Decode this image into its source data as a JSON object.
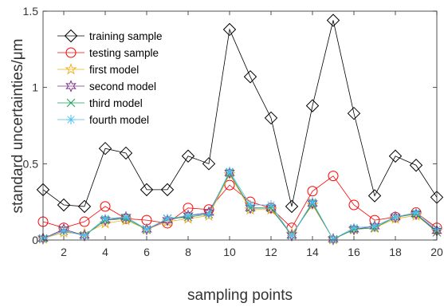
{
  "chart_data": {
    "type": "line",
    "title": "",
    "xlabel": "sampling points",
    "ylabel": "standard uncertainties/μm",
    "xlim": [
      1,
      20
    ],
    "ylim": [
      0,
      1.5
    ],
    "x": [
      1,
      2,
      3,
      4,
      5,
      6,
      7,
      8,
      9,
      10,
      11,
      12,
      13,
      14,
      15,
      16,
      17,
      18,
      19,
      20
    ],
    "xticks": [
      2,
      4,
      6,
      8,
      10,
      12,
      14,
      16,
      18,
      20
    ],
    "yticks": [
      0,
      0.5,
      1,
      1.5
    ],
    "xtick_labels": [
      "2",
      "4",
      "6",
      "8",
      "10",
      "12",
      "14",
      "16",
      "18",
      "20"
    ],
    "ytick_labels": [
      "0",
      "0.5",
      "1",
      "1.5"
    ],
    "grid": false,
    "legend_position": "top-left",
    "series": [
      {
        "name": "training sample",
        "color": "#000000",
        "marker": "diamond",
        "values": [
          0.33,
          0.23,
          0.22,
          0.6,
          0.57,
          0.33,
          0.33,
          0.55,
          0.5,
          1.38,
          1.07,
          0.8,
          0.22,
          0.88,
          1.44,
          0.83,
          0.29,
          0.55,
          0.49,
          0.28
        ]
      },
      {
        "name": "testing sample",
        "color": "#ff0000",
        "marker": "circle",
        "values": [
          0.12,
          0.08,
          0.12,
          0.22,
          0.14,
          0.13,
          0.11,
          0.21,
          0.2,
          0.36,
          0.25,
          0.21,
          0.08,
          0.32,
          0.42,
          0.23,
          0.13,
          0.15,
          0.18,
          0.08
        ]
      },
      {
        "name": "first model",
        "color": "#edb120",
        "marker": "pentagram",
        "values": [
          0.01,
          0.05,
          0.04,
          0.11,
          0.13,
          0.07,
          0.12,
          0.14,
          0.16,
          0.43,
          0.2,
          0.2,
          0.04,
          0.23,
          0.005,
          0.07,
          0.08,
          0.14,
          0.16,
          0.06
        ]
      },
      {
        "name": "second model",
        "color": "#7e2f8e",
        "marker": "hexagram",
        "values": [
          0.01,
          0.07,
          0.03,
          0.13,
          0.15,
          0.07,
          0.13,
          0.16,
          0.18,
          0.44,
          0.21,
          0.21,
          0.03,
          0.24,
          0.005,
          0.07,
          0.09,
          0.15,
          0.17,
          0.06
        ]
      },
      {
        "name": "third model",
        "color": "#1d9e5a",
        "marker": "x",
        "values": [
          0.01,
          0.06,
          0.03,
          0.13,
          0.14,
          0.07,
          0.14,
          0.15,
          0.17,
          0.44,
          0.21,
          0.21,
          0.03,
          0.24,
          0.005,
          0.07,
          0.08,
          0.15,
          0.17,
          0.05
        ]
      },
      {
        "name": "fourth model",
        "color": "#4dbeee",
        "marker": "asterisk",
        "values": [
          0.01,
          0.06,
          0.03,
          0.14,
          0.15,
          0.07,
          0.14,
          0.16,
          0.17,
          0.45,
          0.23,
          0.23,
          0.03,
          0.25,
          0.005,
          0.08,
          0.09,
          0.15,
          0.18,
          0.07
        ]
      }
    ]
  }
}
